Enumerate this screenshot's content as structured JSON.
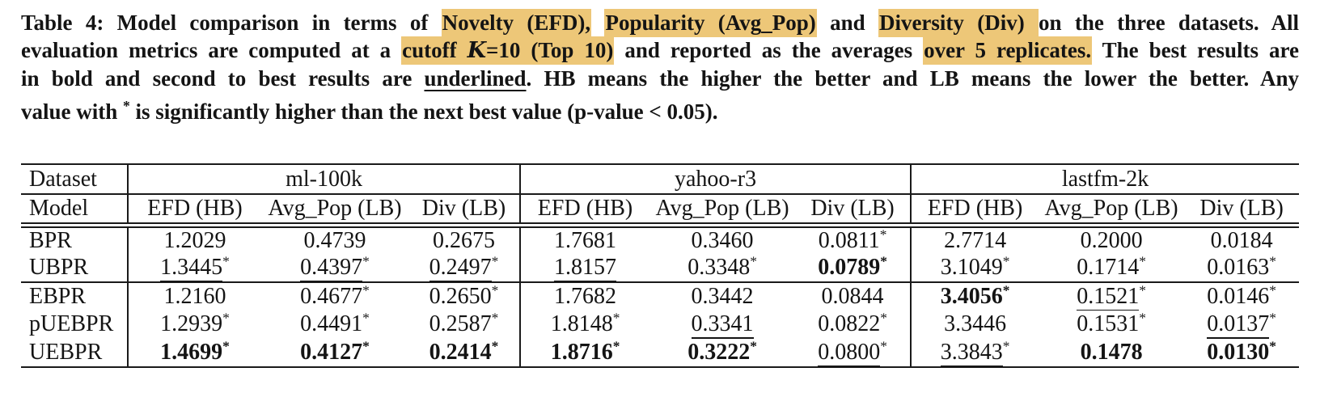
{
  "page": {
    "background": "#ffffff",
    "ink": "#141414",
    "rule_color": "#1a1a1a",
    "highlight_color": "#edc778"
  },
  "caption": {
    "lines": [
      [
        {
          "t": "Table 4: Model comparison in terms of "
        },
        {
          "t": "Novelty (EFD),",
          "hl": true
        },
        {
          "t": " "
        },
        {
          "t": "Popularity (Avg_Pop)",
          "hl": true
        },
        {
          "t": " and "
        },
        {
          "t": "Diversity (Div) ",
          "hl": true
        },
        {
          "t": "on the three datasets. All"
        }
      ],
      [
        {
          "t": "evaluation metrics are computed at a "
        },
        {
          "t": "cutoff 𝒦=10 (Top 10)",
          "hl": true
        },
        {
          "t": " and reported as the averages "
        },
        {
          "t": "over 5 replicates.",
          "hl": true
        },
        {
          "t": " The best results are"
        }
      ],
      [
        {
          "t": "in bold and second to best results are "
        },
        {
          "t": "underlined",
          "u": true
        },
        {
          "t": ". HB means the higher the better and LB means the lower the better. Any"
        }
      ],
      [
        {
          "t": "value with "
        },
        {
          "t": "*",
          "sup": true
        },
        {
          "t": " is significantly higher than the next best value (p-value < 0.05)."
        }
      ]
    ]
  },
  "table": {
    "corner": {
      "row1": "Dataset",
      "row2": "Model"
    },
    "groups": [
      {
        "name": "ml-100k",
        "cols": [
          "EFD (HB)",
          "Avg_Pop (LB)",
          "Div (LB)"
        ]
      },
      {
        "name": "yahoo-r3",
        "cols": [
          "EFD (HB)",
          "Avg_Pop (LB)",
          "Div (LB)"
        ]
      },
      {
        "name": "lastfm-2k",
        "cols": [
          "EFD (HB)",
          "Avg_Pop (LB)",
          "Div (LB)"
        ]
      }
    ],
    "rows": [
      {
        "model": "BPR",
        "values": [
          {
            "v": "1.2029"
          },
          {
            "v": "0.4739"
          },
          {
            "v": "0.2675"
          },
          {
            "v": "1.7681"
          },
          {
            "v": "0.3460"
          },
          {
            "v": "0.0811",
            "star": true
          },
          {
            "v": "2.7714"
          },
          {
            "v": "0.2000"
          },
          {
            "v": "0.0184"
          }
        ]
      },
      {
        "model": "UBPR",
        "values": [
          {
            "v": "1.3445",
            "star": true,
            "u": true
          },
          {
            "v": "0.4397",
            "star": true,
            "u": true
          },
          {
            "v": "0.2497",
            "star": true,
            "u": true
          },
          {
            "v": "1.8157",
            "u": true
          },
          {
            "v": "0.3348",
            "star": true
          },
          {
            "v": "0.0789",
            "star": true,
            "b": true
          },
          {
            "v": "3.1049",
            "star": true
          },
          {
            "v": "0.1714",
            "star": true
          },
          {
            "v": "0.0163",
            "star": true
          }
        ]
      },
      {
        "model": "EBPR",
        "values": [
          {
            "v": "1.2160"
          },
          {
            "v": "0.4677",
            "star": true
          },
          {
            "v": "0.2650",
            "star": true
          },
          {
            "v": "1.7682"
          },
          {
            "v": "0.3442"
          },
          {
            "v": "0.0844"
          },
          {
            "v": "3.4056",
            "star": true,
            "b": true
          },
          {
            "v": "0.1521",
            "star": true,
            "u": true
          },
          {
            "v": "0.0146",
            "star": true
          }
        ]
      },
      {
        "model": "pUEBPR",
        "values": [
          {
            "v": "1.2939",
            "star": true
          },
          {
            "v": "0.4491",
            "star": true
          },
          {
            "v": "0.2587",
            "star": true
          },
          {
            "v": "1.8148",
            "star": true
          },
          {
            "v": "0.3341",
            "u": true
          },
          {
            "v": "0.0822",
            "star": true
          },
          {
            "v": "3.3446"
          },
          {
            "v": "0.1531",
            "star": true
          },
          {
            "v": "0.0137",
            "star": true,
            "u": true
          }
        ]
      },
      {
        "model": "UEBPR",
        "values": [
          {
            "v": "1.4699",
            "star": true,
            "b": true
          },
          {
            "v": "0.4127",
            "star": true,
            "b": true
          },
          {
            "v": "0.2414",
            "star": true,
            "b": true
          },
          {
            "v": "1.8716",
            "star": true,
            "b": true
          },
          {
            "v": "0.3222",
            "star": true,
            "b": true
          },
          {
            "v": "0.0800",
            "star": true,
            "u": true
          },
          {
            "v": "3.3843",
            "star": true,
            "u": true
          },
          {
            "v": "0.1478",
            "b": true
          },
          {
            "v": "0.0130",
            "star": true,
            "b": true
          }
        ]
      },
      {
        "_note_groupend_after": "UBPR"
      }
    ],
    "separator_after_model": "UBPR"
  }
}
